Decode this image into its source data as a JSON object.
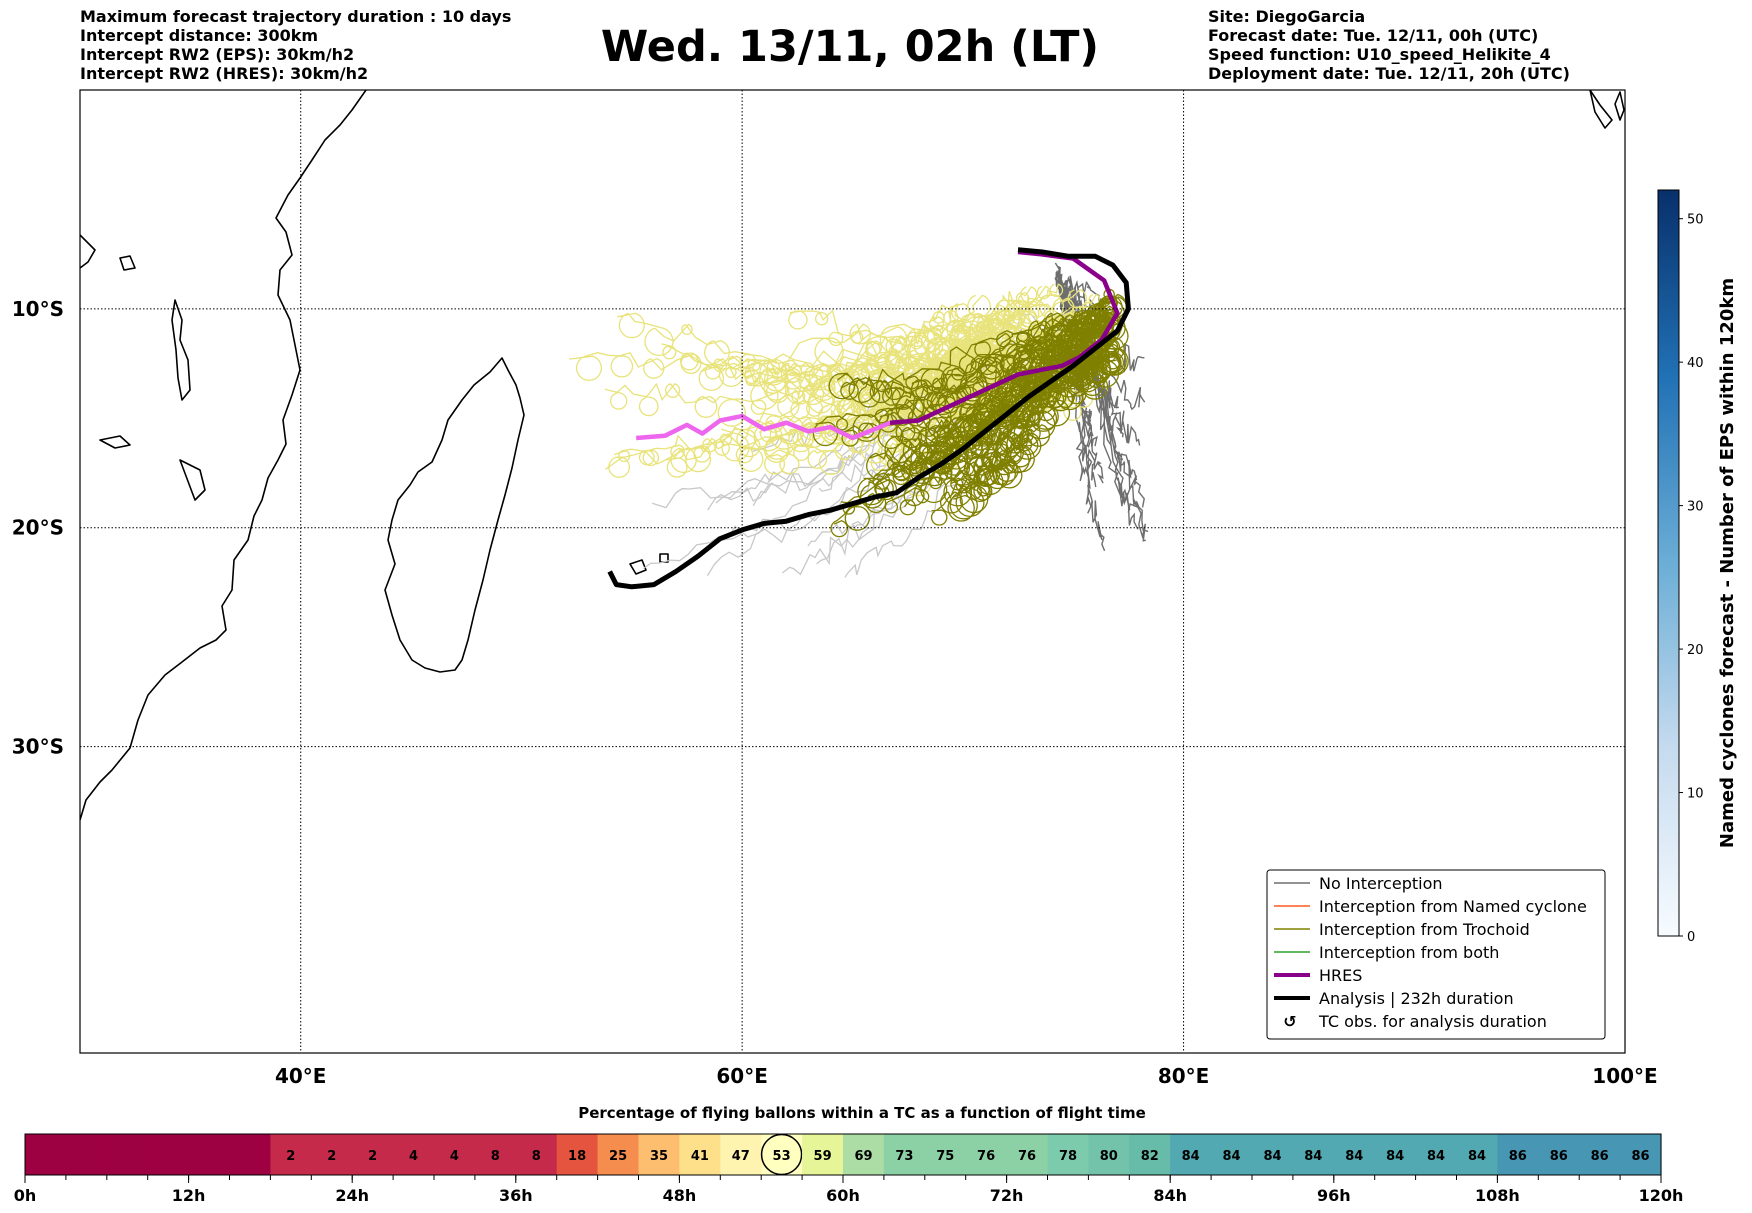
{
  "header": {
    "left_lines": [
      "Maximum forecast trajectory duration : 10 days",
      "Intercept distance: 300km",
      "Intercept RW2 (EPS):  30km/h2",
      "Intercept RW2 (HRES): 30km/h2"
    ],
    "title": "Wed. 13/11, 02h (LT)",
    "right_lines": [
      "Site: DiegoGarcia",
      "Forecast date: Tue. 12/11, 00h (UTC)",
      "Speed function: U10_speed_Helikite_4",
      "Deployment date: Tue. 12/11, 20h (UTC)"
    ]
  },
  "colors": {
    "no_interception": "#6e6e6e",
    "named_cyclone": "#ff5a1f",
    "trochoid": "#808000",
    "both": "#2ca02c",
    "hres": "#8b008b",
    "hres_early": "#ee66ee",
    "analysis": "#000000",
    "light_gray": "#c8c8c8",
    "light_yellow": "#e8e37a"
  },
  "chart_data": [
    {
      "type": "map",
      "axes": {
        "lon_range": [
          30,
          100
        ],
        "lat_range": [
          -44,
          0
        ],
        "x_ticks": [
          {
            "v": 40,
            "label": "40°E"
          },
          {
            "v": 60,
            "label": "60°E"
          },
          {
            "v": 80,
            "label": "80°E"
          },
          {
            "v": 100,
            "label": "100°E"
          }
        ],
        "y_ticks": [
          {
            "v": -10,
            "label": "10°S"
          },
          {
            "v": -20,
            "label": "20°S"
          },
          {
            "v": -30,
            "label": "30°S"
          }
        ],
        "grid": true
      },
      "legend": {
        "placement": "lower-right",
        "entries": [
          {
            "label": "No Interception",
            "style": "no_interception"
          },
          {
            "label": "Interception from Named cyclone",
            "style": "named_cyclone"
          },
          {
            "label": "Interception from Trochoid",
            "style": "trochoid"
          },
          {
            "label": "Interception from both",
            "style": "both"
          },
          {
            "label": "HRES",
            "style": "hres"
          },
          {
            "label": "Analysis | 232h duration",
            "style": "analysis"
          },
          {
            "label": "TC obs. for analysis duration",
            "style": "tc_obs"
          }
        ]
      },
      "hres_track": [
        [
          55.2,
          -15.9
        ],
        [
          56.5,
          -15.8
        ],
        [
          57.5,
          -15.3
        ],
        [
          58.2,
          -15.7
        ],
        [
          59.0,
          -15.1
        ],
        [
          60.0,
          -14.9
        ],
        [
          61.0,
          -15.5
        ],
        [
          62.0,
          -15.2
        ],
        [
          63.0,
          -15.6
        ],
        [
          64.0,
          -15.4
        ],
        [
          65.0,
          -15.9
        ],
        [
          66.0,
          -15.5
        ],
        [
          66.7,
          -15.2
        ],
        [
          68.0,
          -15.1
        ],
        [
          69.5,
          -14.4
        ],
        [
          71.0,
          -13.7
        ],
        [
          72.5,
          -13.0
        ],
        [
          73.5,
          -12.8
        ],
        [
          74.5,
          -12.6
        ],
        [
          75.3,
          -12.2
        ],
        [
          76.3,
          -11.4
        ],
        [
          77.0,
          -10.2
        ],
        [
          76.4,
          -8.7
        ],
        [
          75.0,
          -7.7
        ],
        [
          73.5,
          -7.5
        ],
        [
          72.5,
          -7.4
        ]
      ],
      "analysis_track": [
        [
          54.0,
          -22.0
        ],
        [
          54.3,
          -22.6
        ],
        [
          55.0,
          -22.7
        ],
        [
          56.0,
          -22.6
        ],
        [
          57.0,
          -22.0
        ],
        [
          58.0,
          -21.3
        ],
        [
          59.0,
          -20.5
        ],
        [
          60.0,
          -20.1
        ],
        [
          61.0,
          -19.8
        ],
        [
          62.0,
          -19.7
        ],
        [
          63.0,
          -19.4
        ],
        [
          64.0,
          -19.2
        ],
        [
          65.0,
          -18.9
        ],
        [
          66.0,
          -18.6
        ],
        [
          67.0,
          -18.4
        ],
        [
          68.0,
          -17.7
        ],
        [
          69.0,
          -17.1
        ],
        [
          70.0,
          -16.4
        ],
        [
          71.0,
          -15.6
        ],
        [
          72.0,
          -14.8
        ],
        [
          73.0,
          -14.0
        ],
        [
          74.0,
          -13.3
        ],
        [
          75.0,
          -12.6
        ],
        [
          76.0,
          -11.8
        ],
        [
          77.0,
          -11.0
        ],
        [
          77.5,
          -10.0
        ],
        [
          77.4,
          -8.8
        ],
        [
          76.8,
          -8.0
        ],
        [
          76.0,
          -7.6
        ],
        [
          74.8,
          -7.6
        ],
        [
          73.6,
          -7.4
        ],
        [
          72.5,
          -7.3
        ]
      ],
      "tc_obs_markers": [
        [
          55.6,
          -22.0
        ],
        [
          59.9,
          -19.4
        ],
        [
          61.0,
          -18.3
        ],
        [
          64.0,
          -16.9
        ],
        [
          76.3,
          -10.4
        ]
      ]
    },
    {
      "type": "colorbar",
      "label": "Named cyclones forecast - Number of EPS within 120km",
      "range": [
        0,
        52
      ],
      "ticks": [
        0,
        10,
        20,
        30,
        40,
        50
      ]
    },
    {
      "type": "heatmap",
      "title": "Percentage of flying ballons within a TC as a function of flight time",
      "x_ticks": [
        "0h",
        "12h",
        "24h",
        "36h",
        "48h",
        "60h",
        "72h",
        "84h",
        "96h",
        "108h",
        "120h"
      ],
      "values": [
        0,
        0,
        0,
        0,
        0,
        0,
        2,
        2,
        2,
        4,
        4,
        8,
        8,
        18,
        25,
        35,
        41,
        47,
        53,
        59,
        69,
        73,
        75,
        76,
        76,
        78,
        80,
        82,
        84,
        84,
        84,
        84,
        84,
        84,
        84,
        84,
        86,
        86,
        86,
        86
      ],
      "highlighted_value": 53
    }
  ]
}
